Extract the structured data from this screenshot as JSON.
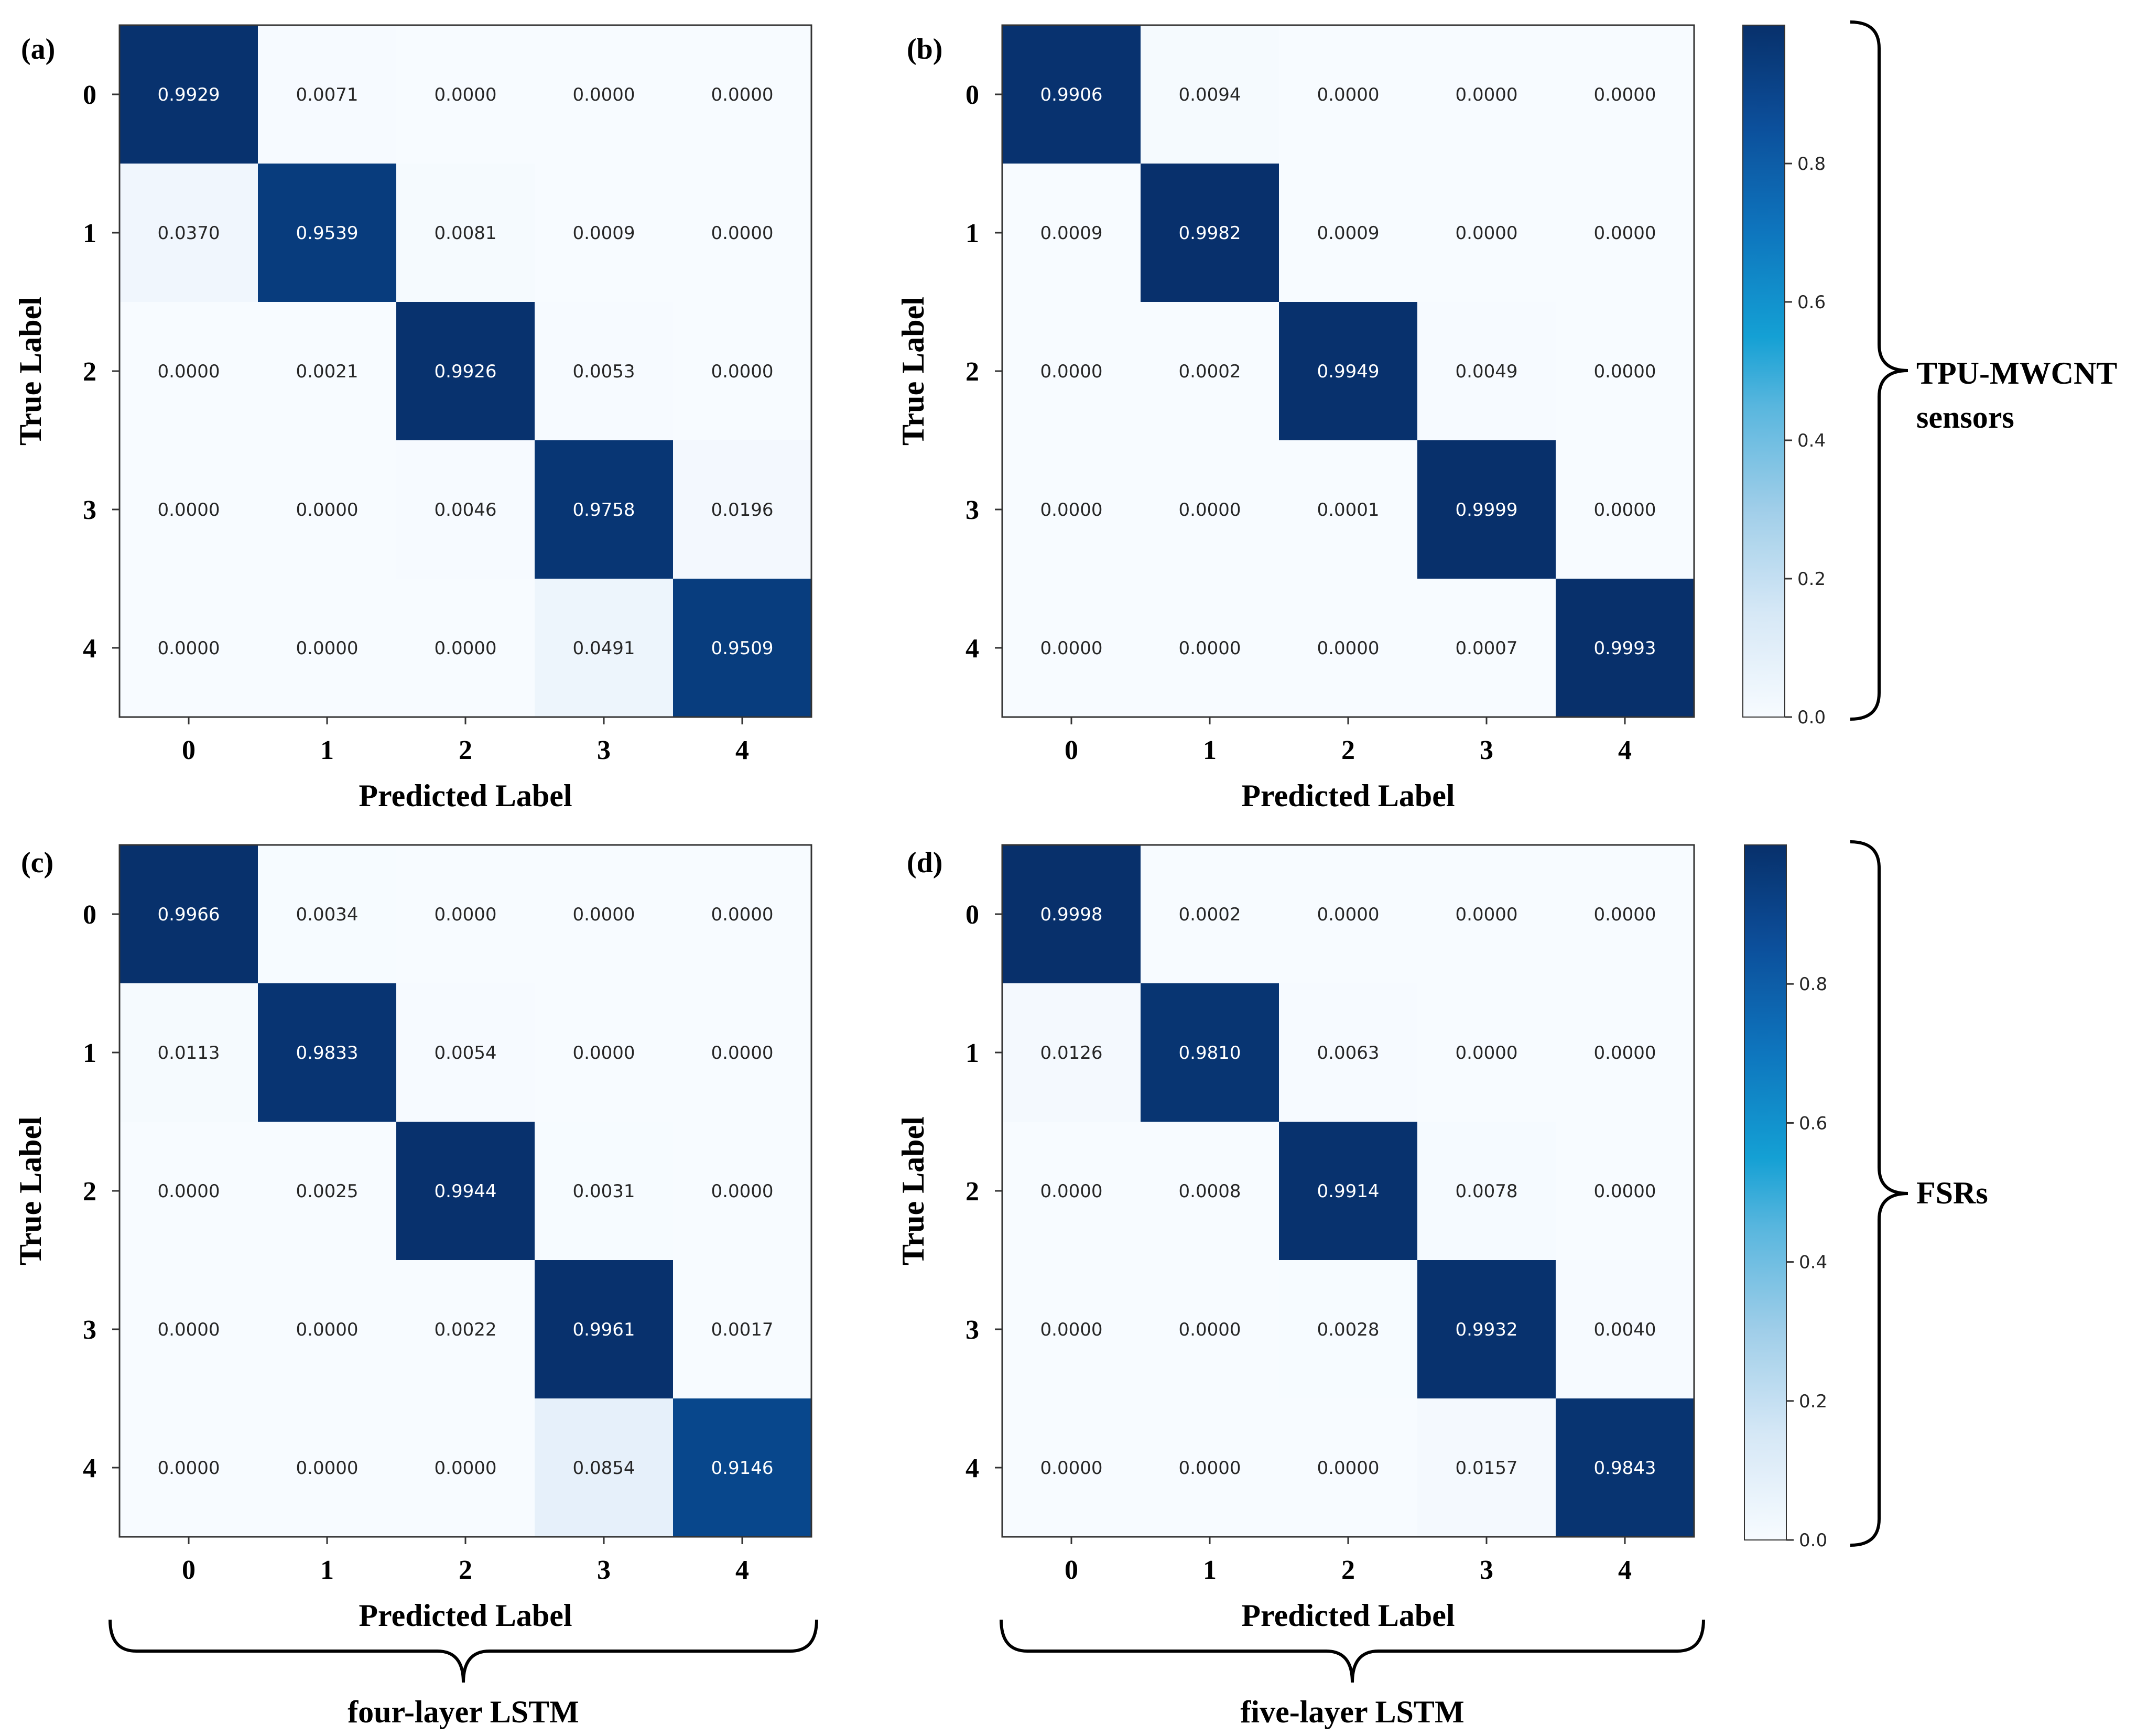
{
  "chart_data": [
    {
      "type": "heatmap",
      "panel": "(a)",
      "xlabel": "Predicted Label",
      "ylabel": "True Label",
      "x_categories": [
        "0",
        "1",
        "2",
        "3",
        "4"
      ],
      "y_categories": [
        "0",
        "1",
        "2",
        "3",
        "4"
      ],
      "values": [
        [
          0.9929,
          0.0071,
          0.0,
          0.0,
          0.0
        ],
        [
          0.037,
          0.9539,
          0.0081,
          0.0009,
          0.0
        ],
        [
          0.0,
          0.0021,
          0.9926,
          0.0053,
          0.0
        ],
        [
          0.0,
          0.0,
          0.0046,
          0.9758,
          0.0196
        ],
        [
          0.0,
          0.0,
          0.0,
          0.0491,
          0.9509
        ]
      ],
      "labels": [
        [
          "0.9929",
          "0.0071",
          "0.0000",
          "0.0000",
          "0.0000"
        ],
        [
          "0.0370",
          "0.9539",
          "0.0081",
          "0.0009",
          "0.0000"
        ],
        [
          "0.0000",
          "0.0021",
          "0.9926",
          "0.0053",
          "0.0000"
        ],
        [
          "0.0000",
          "0.0000",
          "0.0046",
          "0.9758",
          "0.0196"
        ],
        [
          "0.0000",
          "0.0000",
          "0.0000",
          "0.0491",
          "0.9509"
        ]
      ],
      "colormap": "Blues",
      "value_range": [
        0,
        1
      ]
    },
    {
      "type": "heatmap",
      "panel": "(b)",
      "xlabel": "Predicted Label",
      "ylabel": "True Label",
      "x_categories": [
        "0",
        "1",
        "2",
        "3",
        "4"
      ],
      "y_categories": [
        "0",
        "1",
        "2",
        "3",
        "4"
      ],
      "values": [
        [
          0.9906,
          0.0094,
          0.0,
          0.0,
          0.0
        ],
        [
          0.0009,
          0.9982,
          0.0009,
          0.0,
          0.0
        ],
        [
          0.0,
          0.0002,
          0.9949,
          0.0049,
          0.0
        ],
        [
          0.0,
          0.0,
          0.0001,
          0.9999,
          0.0
        ],
        [
          0.0,
          0.0,
          0.0,
          0.0007,
          0.9993
        ]
      ],
      "labels": [
        [
          "0.9906",
          "0.0094",
          "0.0000",
          "0.0000",
          "0.0000"
        ],
        [
          "0.0009",
          "0.9982",
          "0.0009",
          "0.0000",
          "0.0000"
        ],
        [
          "0.0000",
          "0.0002",
          "0.9949",
          "0.0049",
          "0.0000"
        ],
        [
          "0.0000",
          "0.0000",
          "0.0001",
          "0.9999",
          "0.0000"
        ],
        [
          "0.0000",
          "0.0000",
          "0.0000",
          "0.0007",
          "0.9993"
        ]
      ],
      "colormap": "Blues",
      "value_range": [
        0,
        1
      ]
    },
    {
      "type": "heatmap",
      "panel": "(c)",
      "xlabel": "Predicted Label",
      "ylabel": "True Label",
      "x_categories": [
        "0",
        "1",
        "2",
        "3",
        "4"
      ],
      "y_categories": [
        "0",
        "1",
        "2",
        "3",
        "4"
      ],
      "values": [
        [
          0.9966,
          0.0034,
          0.0,
          0.0,
          0.0
        ],
        [
          0.0113,
          0.9833,
          0.0054,
          0.0,
          0.0
        ],
        [
          0.0,
          0.0025,
          0.9944,
          0.0031,
          0.0
        ],
        [
          0.0,
          0.0,
          0.0022,
          0.9961,
          0.0017
        ],
        [
          0.0,
          0.0,
          0.0,
          0.0854,
          0.9146
        ]
      ],
      "labels": [
        [
          "0.9966",
          "0.0034",
          "0.0000",
          "0.0000",
          "0.0000"
        ],
        [
          "0.0113",
          "0.9833",
          "0.0054",
          "0.0000",
          "0.0000"
        ],
        [
          "0.0000",
          "0.0025",
          "0.9944",
          "0.0031",
          "0.0000"
        ],
        [
          "0.0000",
          "0.0000",
          "0.0022",
          "0.9961",
          "0.0017"
        ],
        [
          "0.0000",
          "0.0000",
          "0.0000",
          "0.0854",
          "0.9146"
        ]
      ],
      "colormap": "Blues",
      "value_range": [
        0,
        1
      ]
    },
    {
      "type": "heatmap",
      "panel": "(d)",
      "xlabel": "Predicted Label",
      "ylabel": "True Label",
      "x_categories": [
        "0",
        "1",
        "2",
        "3",
        "4"
      ],
      "y_categories": [
        "0",
        "1",
        "2",
        "3",
        "4"
      ],
      "values": [
        [
          0.9998,
          0.0002,
          0.0,
          0.0,
          0.0
        ],
        [
          0.0126,
          0.981,
          0.0063,
          0.0,
          0.0
        ],
        [
          0.0,
          0.0008,
          0.9914,
          0.0078,
          0.0
        ],
        [
          0.0,
          0.0,
          0.0028,
          0.9932,
          0.004
        ],
        [
          0.0,
          0.0,
          0.0,
          0.0157,
          0.9843
        ]
      ],
      "labels": [
        [
          "0.9998",
          "0.0002",
          "0.0000",
          "0.0000",
          "0.0000"
        ],
        [
          "0.0126",
          "0.9810",
          "0.0063",
          "0.0000",
          "0.0000"
        ],
        [
          "0.0000",
          "0.0008",
          "0.9914",
          "0.0078",
          "0.0000"
        ],
        [
          "0.0000",
          "0.0000",
          "0.0028",
          "0.9932",
          "0.0040"
        ],
        [
          "0.0000",
          "0.0000",
          "0.0000",
          "0.0157",
          "0.9843"
        ]
      ],
      "colormap": "Blues",
      "value_range": [
        0,
        1
      ]
    }
  ],
  "colorbars": [
    {
      "ticks": [
        "0.0",
        "0.2",
        "0.4",
        "0.6",
        "0.8"
      ],
      "range": [
        0,
        1
      ]
    },
    {
      "ticks": [
        "0.0",
        "0.2",
        "0.4",
        "0.6",
        "0.8"
      ],
      "range": [
        0,
        1
      ]
    }
  ],
  "group_labels": {
    "top_row": [
      "TPU-MWCNT",
      "sensors"
    ],
    "bottom_row": [
      "FSRs"
    ],
    "left_column": "four-layer LSTM",
    "right_column": "five-layer LSTM"
  },
  "colors": {
    "colormap_low": "#f7fbff",
    "colormap_high": "#08306b",
    "text_dark": "#262626",
    "text_light": "#ffffff",
    "frame": "#333333"
  }
}
